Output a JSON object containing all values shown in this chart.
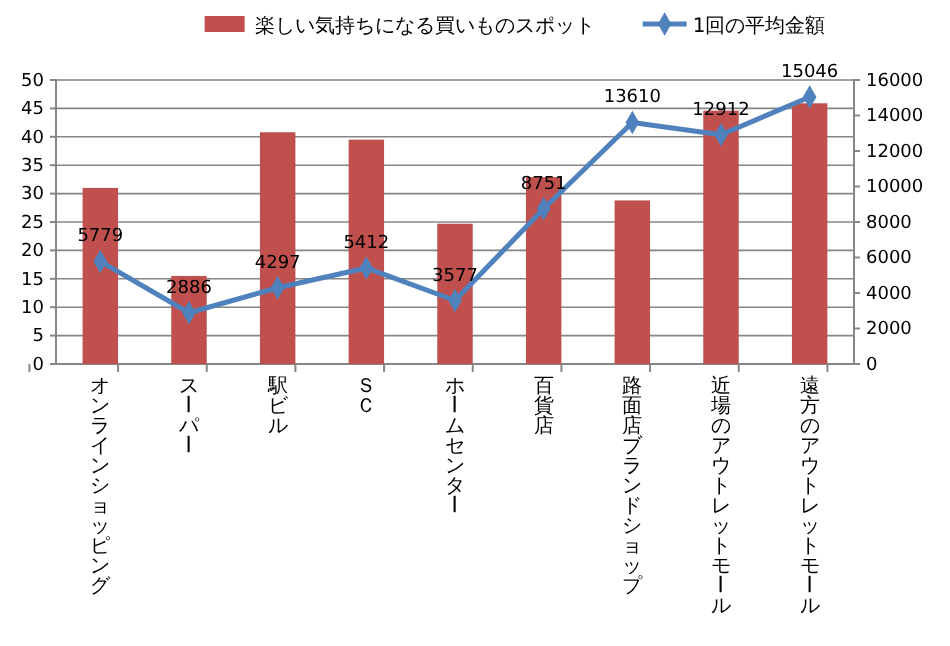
{
  "chart_data": {
    "type": "bar",
    "categories": [
      "オンラインショッピング",
      "スーパー",
      "駅ビル",
      "ＳＣ",
      "ホームセンター",
      "百貨店",
      "路面店ブランドショップ",
      "近場のアウトレットモール",
      "遠方のアウトレットモール"
    ],
    "series": [
      {
        "name": "楽しい気持ちになる買いものスポット",
        "color": "#c0504d",
        "values": [
          31,
          15.5,
          40.8,
          39.5,
          24.7,
          32.9,
          28.8,
          44.6,
          45.9
        ]
      },
      {
        "name": "1回の平均金額",
        "type": "line",
        "axis": "y2",
        "color": "#4f81bd",
        "marker": "diamond",
        "values": [
          5779,
          2886,
          4297,
          5412,
          3577,
          8751,
          13610,
          12912,
          15046
        ],
        "value_labels": [
          "5779",
          "2886",
          "4297",
          "5412",
          "3577",
          "8751",
          "13610",
          "12912",
          "15046"
        ]
      }
    ],
    "ylim": [
      0,
      50
    ],
    "yticks": [
      0,
      5,
      10,
      15,
      20,
      25,
      30,
      35,
      40,
      45,
      50
    ],
    "y2lim": [
      0,
      16000
    ],
    "y2ticks": [
      0,
      2000,
      4000,
      6000,
      8000,
      10000,
      12000,
      14000,
      16000
    ],
    "grid": "y",
    "legend": "top"
  }
}
